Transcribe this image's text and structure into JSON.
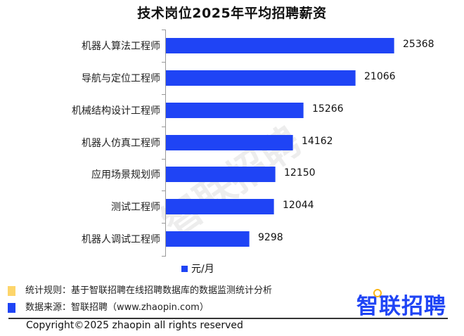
{
  "chart_data": {
    "type": "bar",
    "orientation": "horizontal",
    "title": "技术岗位2025年平均招聘薪资",
    "categories": [
      "机器人算法工程师",
      "导航与定位工程师",
      "机械结构设计工程师",
      "机器人仿真工程师",
      "应用场景规划师",
      "测试工程师",
      "机器人调试工程师"
    ],
    "series": [
      {
        "name": "元/月",
        "values": [
          25368,
          21066,
          15266,
          14162,
          12150,
          12044,
          9298
        ],
        "color": "#1f44f5"
      }
    ],
    "xlabel": "",
    "ylabel": "",
    "legend_position": "bottom",
    "grid": false
  },
  "rows": [
    {
      "label": "机器人算法工程师",
      "value": "25368"
    },
    {
      "label": "导航与定位工程师",
      "value": "21066"
    },
    {
      "label": "机械结构设计工程师",
      "value": "15266"
    },
    {
      "label": "机器人仿真工程师",
      "value": "14162"
    },
    {
      "label": "应用场景规划师",
      "value": "12150"
    },
    {
      "label": "测试工程师",
      "value": "12044"
    },
    {
      "label": "机器人调试工程师",
      "value": "9298"
    }
  ],
  "legend": {
    "label": "元/月"
  },
  "watermark": "智联招聘",
  "footer": {
    "rule": "统计规则：基于智联招聘在线招聘数据库的数据监测统计分析",
    "source": "数据来源：智联招聘（www.zhaopin.com）",
    "logo": "智联招聘",
    "copyright": "Copyright©2025 zhaopin all rights reserved"
  },
  "colors": {
    "bar": "#1f44f5",
    "rule_swatch": "#fdd56a",
    "source_swatch": "#1f44f5",
    "logo_dot": "#fbb514"
  }
}
